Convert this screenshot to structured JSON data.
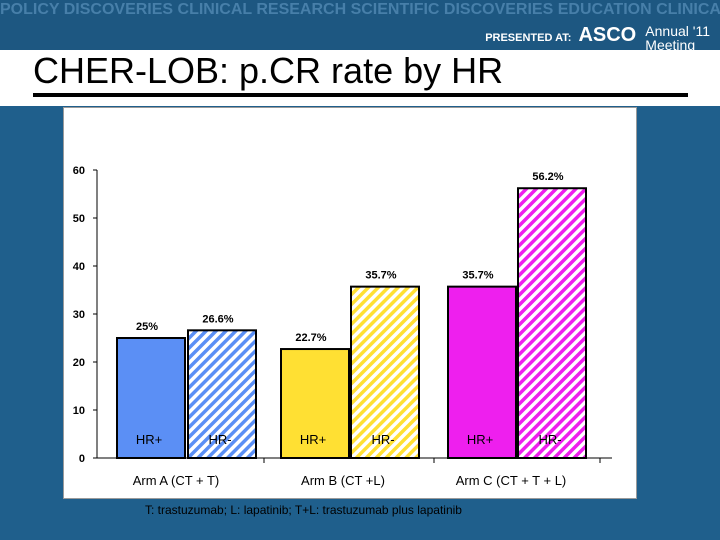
{
  "banner": {
    "words": "POLICY DISCOVERIES CLINICAL RESEARCH SCIENTIFIC DISCOVERIES EDUCATION CLINICAL ADVANCES SCIENTIFIC ADVANCES PATIENT CARE TRANSFORM CURE EVIDENCE COMPASSION POLICY PARTNERSHIP KNOWLEDGE TRUST EXPERTISE PREVENTION MULTIDISCIPLINARY CANCER CARE",
    "presented_at": "PRESENTED AT:",
    "org": "ASCO",
    "meeting_line1": "Annual '11",
    "meeting_line2": "Meeting"
  },
  "slide": {
    "title": "CHER-LOB: p.CR rate by HR",
    "footnote": "T: trastuzumab; L: lapatinib; T+L: trastuzumab plus lapatinib"
  },
  "chart_data": {
    "type": "bar",
    "title": "",
    "xlabel": "",
    "ylabel": "",
    "ylim": [
      0,
      60
    ],
    "yticks": [
      "0",
      "10",
      "20",
      "30",
      "40",
      "50",
      "60"
    ],
    "grid": false,
    "groups": [
      {
        "label": "Arm A (CT + T)",
        "bars": [
          {
            "category": "HR+",
            "value": 25,
            "value_label": "25%",
            "color": "#5b8ff5",
            "pattern": "solid"
          },
          {
            "category": "HR-",
            "value": 26.6,
            "value_label": "26.6%",
            "color": "#5b8ff5",
            "pattern": "hatched"
          }
        ]
      },
      {
        "label": "Arm B (CT +L)",
        "bars": [
          {
            "category": "HR+",
            "value": 22.7,
            "value_label": "22.7%",
            "color": "#ffe033",
            "pattern": "solid"
          },
          {
            "category": "HR-",
            "value": 35.7,
            "value_label": "35.7%",
            "color": "#ffe033",
            "pattern": "hatched"
          }
        ]
      },
      {
        "label": "Arm C (CT + T + L)",
        "bars": [
          {
            "category": "HR+",
            "value": 35.7,
            "value_label": "35.7%",
            "color": "#ee1fee",
            "pattern": "solid"
          },
          {
            "category": "HR-",
            "value": 56.2,
            "value_label": "56.2%",
            "color": "#ee1fee",
            "pattern": "hatched"
          }
        ]
      }
    ]
  }
}
